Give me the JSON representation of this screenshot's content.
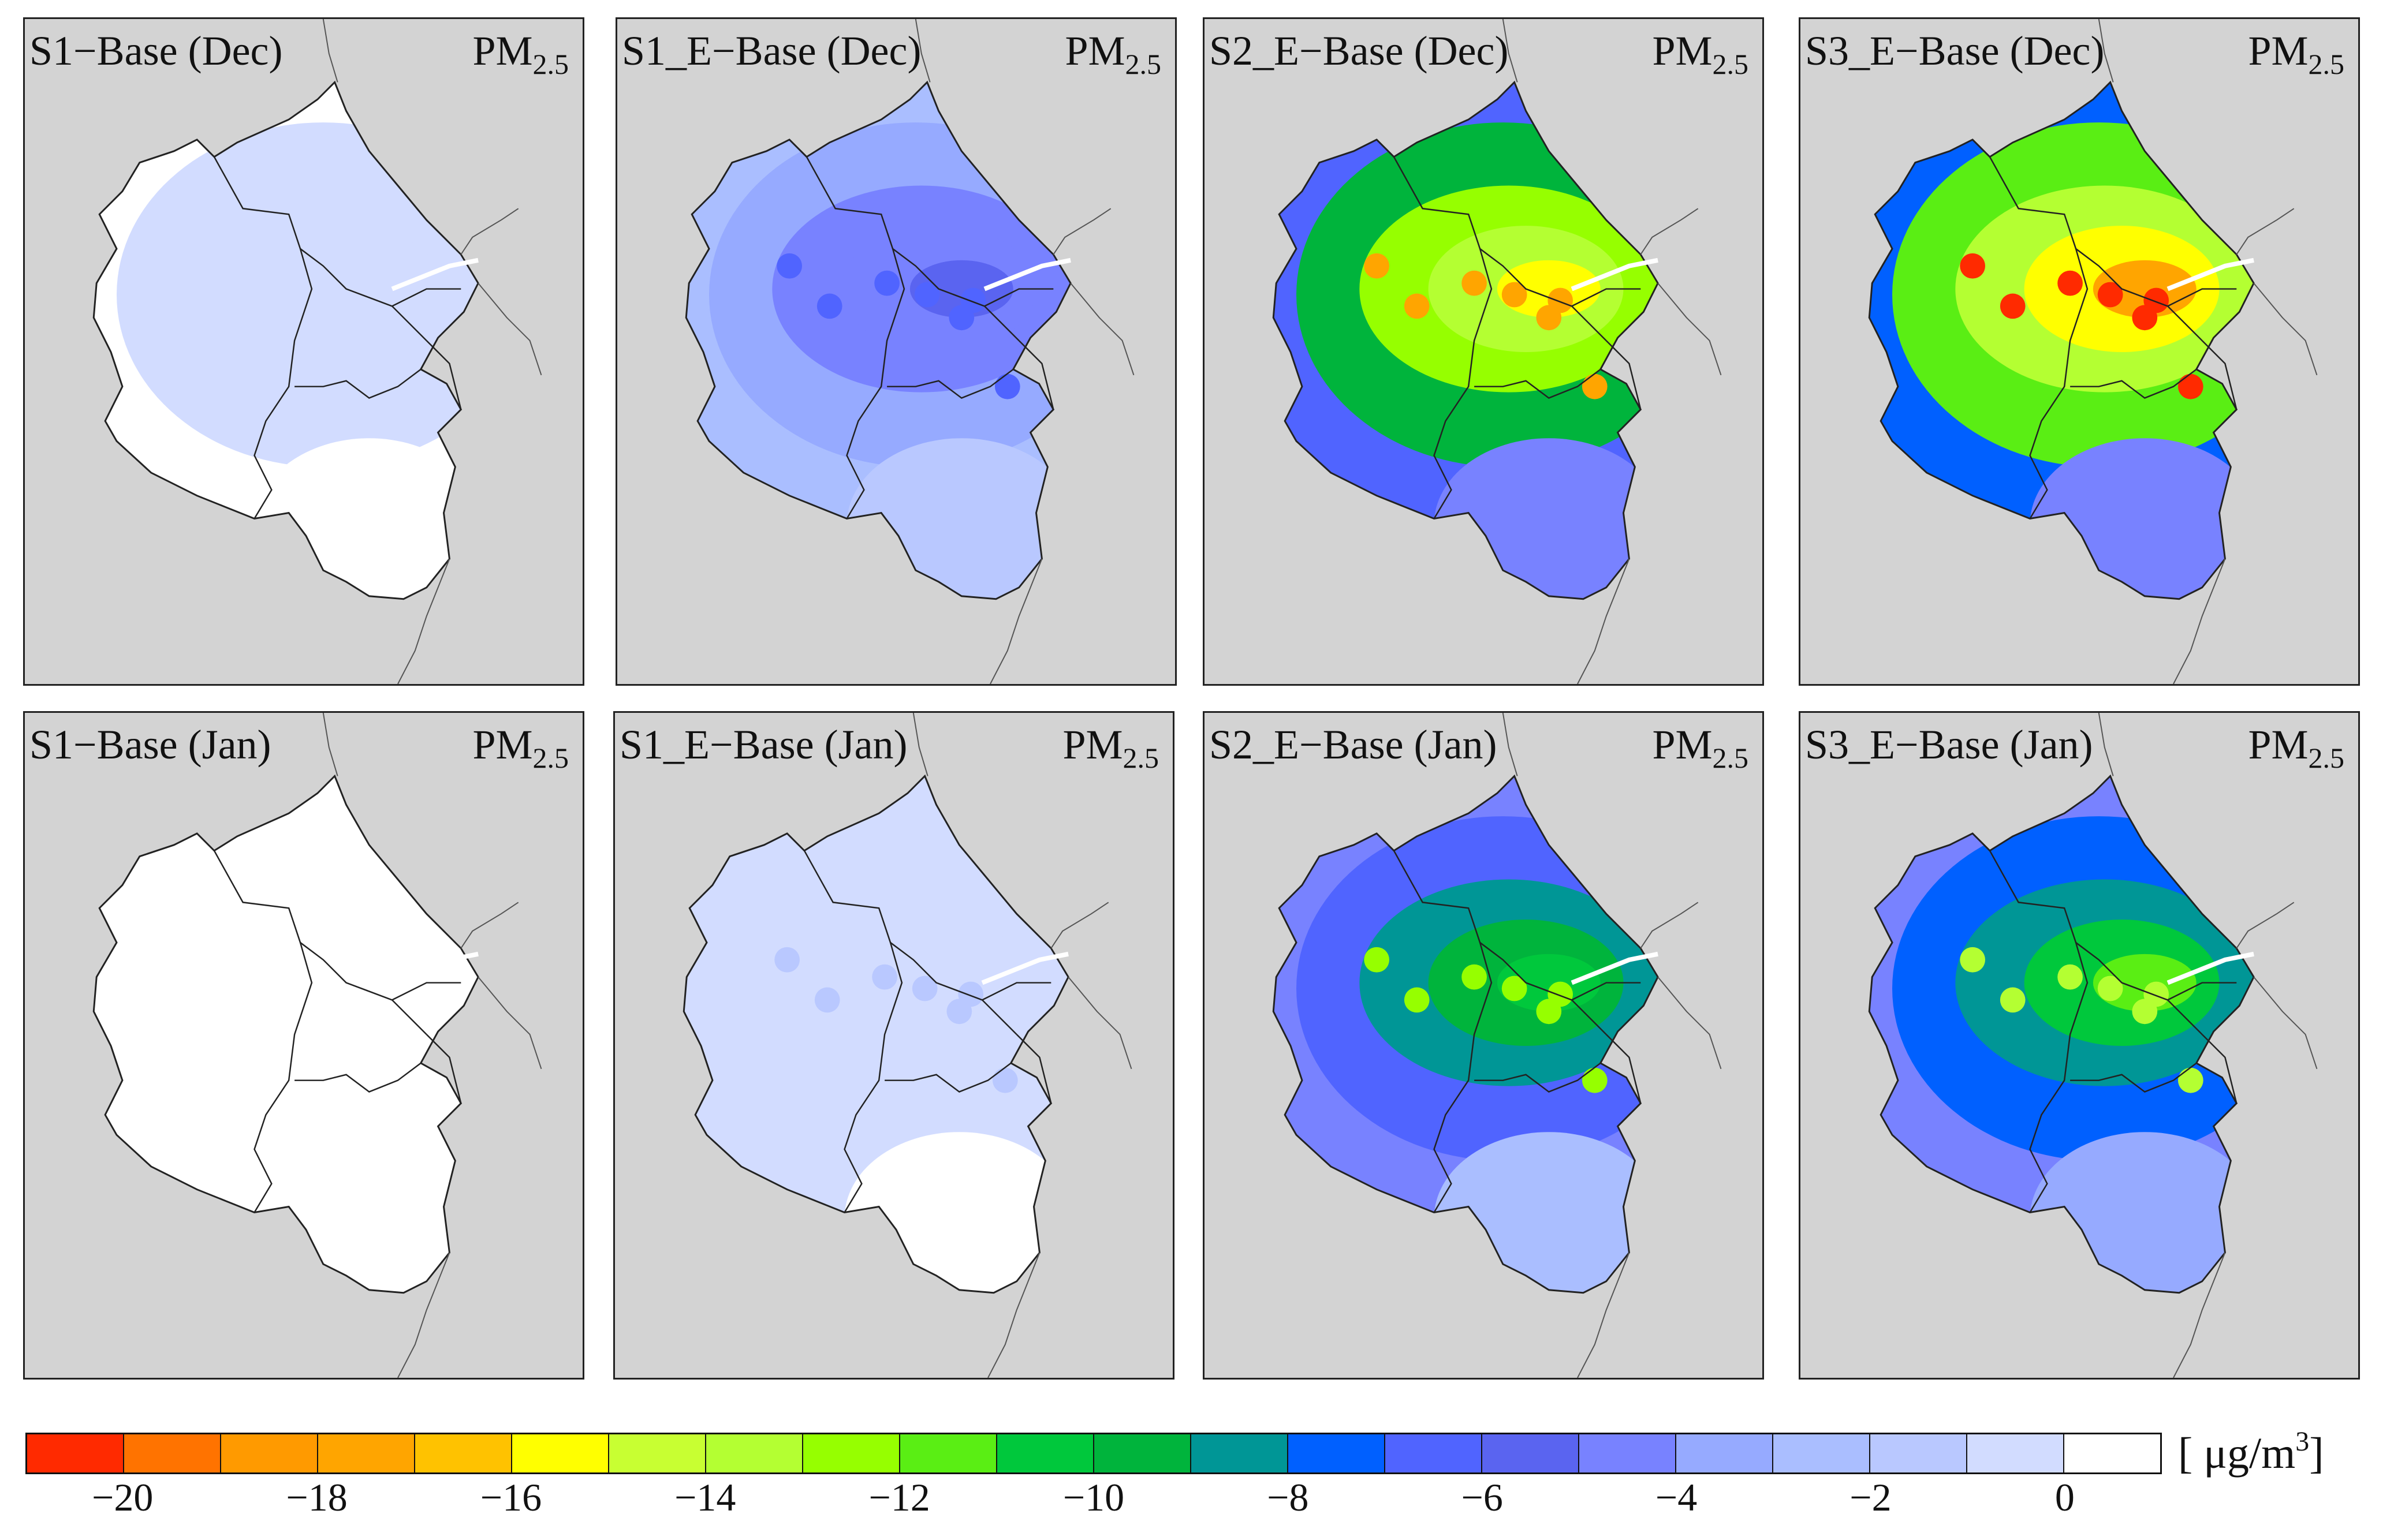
{
  "figure": {
    "variable_main": "PM",
    "variable_sub": "2.5",
    "panels": [
      {
        "title": "S1−Base (Dec)",
        "intensity": 0.05
      },
      {
        "title": "S1_E−Base (Dec)",
        "intensity": 0.28
      },
      {
        "title": "S2_E−Base (Dec)",
        "intensity": 0.75
      },
      {
        "title": "S3_E−Base (Dec)",
        "intensity": 0.85
      },
      {
        "title": "S1−Base (Jan)",
        "intensity": 0.01
      },
      {
        "title": "S1_E−Base (Jan)",
        "intensity": 0.07
      },
      {
        "title": "S2_E−Base (Jan)",
        "intensity": 0.52
      },
      {
        "title": "S3_E−Base (Jan)",
        "intensity": 0.56
      }
    ]
  },
  "colorbar": {
    "colors": [
      "#ff2a00",
      "#ff7300",
      "#ff9a00",
      "#ffa500",
      "#ffc200",
      "#ffff00",
      "#c8ff32",
      "#b4ff32",
      "#96ff00",
      "#5aee14",
      "#00c83c",
      "#00b43c",
      "#009696",
      "#0060ff",
      "#5064ff",
      "#5a64f0",
      "#7882ff",
      "#96aaff",
      "#aabeff",
      "#b9c8ff",
      "#d2dcff",
      "#ffffff"
    ],
    "ticks": [
      "−20",
      "−18",
      "−16",
      "−14",
      "−12",
      "−10",
      "−8",
      "−6",
      "−4",
      "−2",
      "0"
    ],
    "unit": "[ μg/m",
    "unit_sup": "3",
    "unit_end": "]"
  }
}
